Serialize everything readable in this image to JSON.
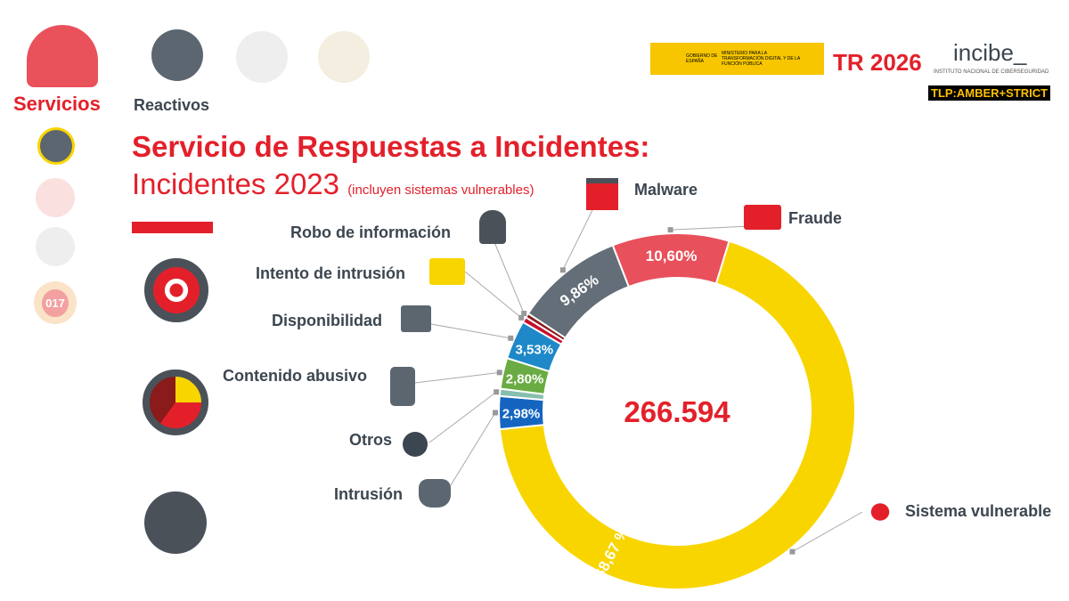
{
  "nav": {
    "servicios": "Servicios",
    "reactivos": "Reactivos"
  },
  "logos": {
    "gobierno": "GOBIERNO DE ESPAÑA",
    "ministerio": "MINISTERIO PARA LA TRANSFORMACIÓN DIGITAL Y DE LA FUNCIÓN PÚBLICA",
    "tr": "TR 2026",
    "incibe": "incibe_",
    "incibe_sub": "INSTITUTO NACIONAL DE CIBERSEGURIDAD",
    "tlp": "TLP:AMBER+STRICT"
  },
  "side_badge": "017",
  "title": {
    "line1": "Servicio de Respuestas a Incidentes:",
    "line2": "Incidentes 2023",
    "note": "(incluyen sistemas vulnerables)"
  },
  "chart_data": {
    "type": "pie",
    "donut": true,
    "title": "Servicio de Respuestas a Incidentes: Incidentes 2023",
    "center_label": "266.594",
    "slices": [
      {
        "name": "Sistema vulnerable",
        "value": 68.67,
        "label": "68,67 %",
        "color": "#f9d500"
      },
      {
        "name": "Intrusión",
        "value": 2.98,
        "label": "2,98%",
        "color": "#1565c0"
      },
      {
        "name": "Otros",
        "value": 0.66,
        "label": "",
        "color": "#86bfae"
      },
      {
        "name": "Contenido abusivo",
        "value": 2.8,
        "label": "2,80%",
        "color": "#6aac43"
      },
      {
        "name": "Disponibilidad",
        "value": 3.53,
        "label": "3,53%",
        "color": "#1e88c8"
      },
      {
        "name": "Intento de intrusión",
        "value": 0.5,
        "label": "",
        "color": "#c8102e"
      },
      {
        "name": "Robo de información",
        "value": 0.4,
        "label": "",
        "color": "#8b1a1a"
      },
      {
        "name": "Malware",
        "value": 9.86,
        "label": "9,86%",
        "color": "#636e78"
      },
      {
        "name": "Fraude",
        "value": 10.6,
        "label": "10,60%",
        "color": "#e8505b"
      }
    ]
  }
}
